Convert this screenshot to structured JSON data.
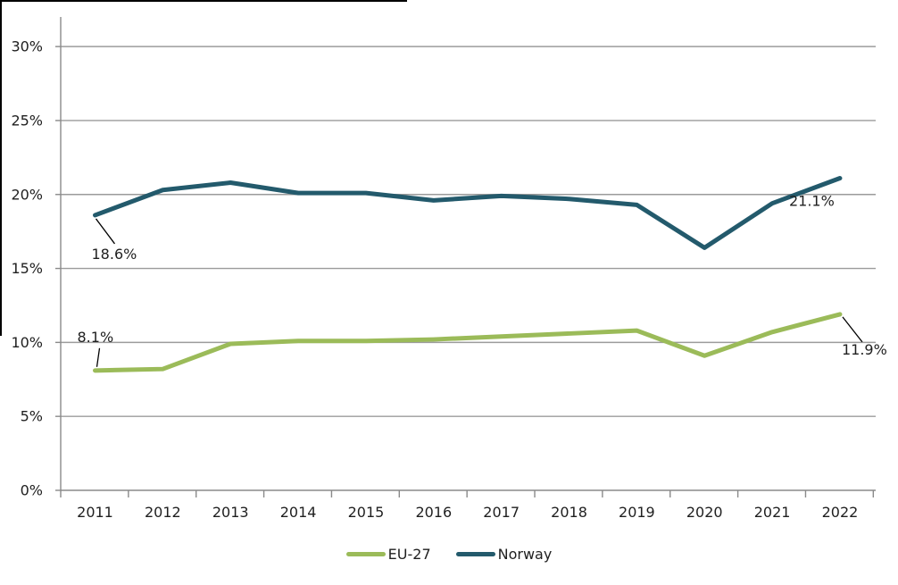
{
  "chart_data": {
    "type": "line",
    "title": "",
    "xlabel": "",
    "ylabel": "",
    "x": [
      2011,
      2012,
      2013,
      2014,
      2015,
      2016,
      2017,
      2018,
      2019,
      2020,
      2021,
      2022
    ],
    "series": [
      {
        "name": "EU-27",
        "color": "#9BBB59",
        "values": [
          8.1,
          8.2,
          9.9,
          10.1,
          10.1,
          10.2,
          10.4,
          10.6,
          10.8,
          9.1,
          10.7,
          11.9
        ]
      },
      {
        "name": "Norway",
        "color": "#235A6C",
        "values": [
          18.6,
          20.3,
          20.8,
          20.1,
          20.1,
          19.6,
          19.9,
          19.7,
          19.3,
          16.4,
          19.4,
          21.1
        ]
      }
    ],
    "ylim": [
      0,
      32
    ],
    "ytick_step": 5,
    "ytick_labels": [
      "0%",
      "5%",
      "10%",
      "15%",
      "20%",
      "25%",
      "30%"
    ],
    "grid": "horizontal-only",
    "legend_position": "bottom",
    "annotations": [
      {
        "series": "Norway",
        "year": 2011,
        "text": "18.6%"
      },
      {
        "series": "Norway",
        "year": 2022,
        "text": "21.1%"
      },
      {
        "series": "EU-27",
        "year": 2011,
        "text": "8.1%"
      },
      {
        "series": "EU-27",
        "year": 2022,
        "text": "11.9%"
      }
    ]
  },
  "colors": {
    "gridline": "#9b9b9b",
    "axis": "#8a8a8a",
    "text": "#1f1f1f",
    "leader_line": "#000000",
    "border_fragment": "#000000",
    "background": "#ffffff"
  }
}
